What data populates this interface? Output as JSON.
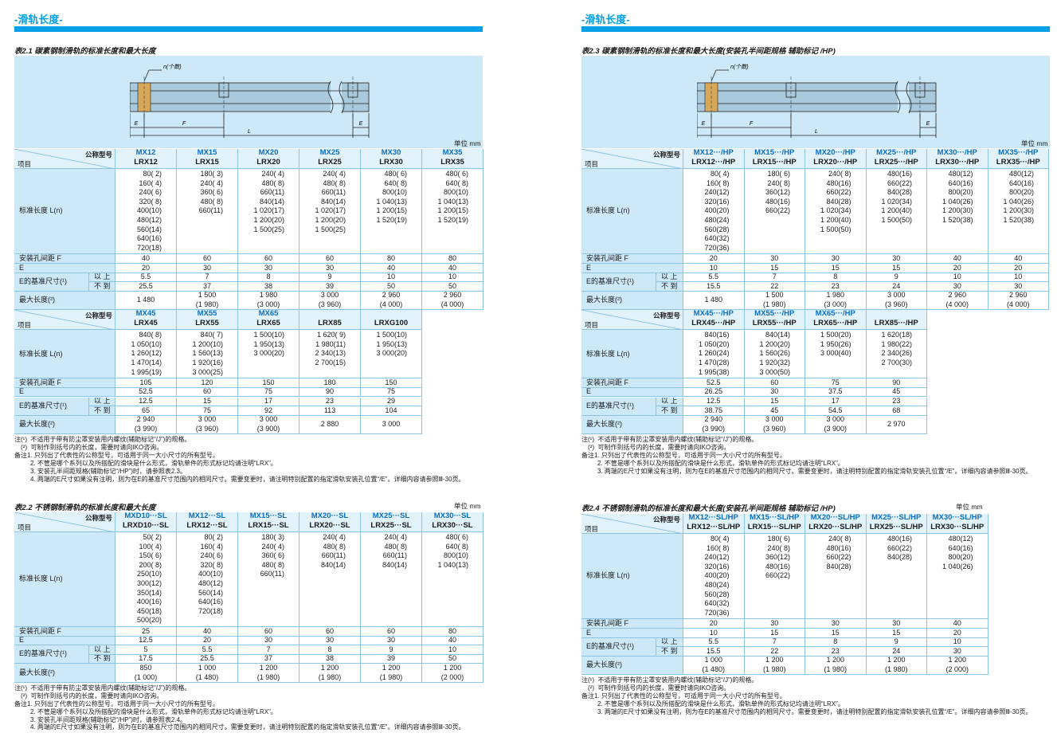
{
  "header": "-滑轨长度-",
  "unit": "单位 mm",
  "diagram": {
    "n": "n(个数)",
    "E": "E",
    "F": "F",
    "L": "L"
  },
  "corner": {
    "model": "公称型号",
    "item": "项目"
  },
  "rows": {
    "length": "标准长度 L(n)",
    "F": "安装孔间距 F",
    "E": "E",
    "e_ref": "E的基准尺寸(¹)",
    "e_min": "以 上",
    "e_max": "不 到",
    "max": "最大长度(²)"
  },
  "tables": [
    {
      "title": "表2.1  碳素钢制滑轨的标准长度和最大长度",
      "parts": [
        {
          "columns": [
            [
              "MX12",
              "LRX12"
            ],
            [
              "MX15",
              "LRX15"
            ],
            [
              "MX20",
              "LRX20"
            ],
            [
              "MX25",
              "LRX25"
            ],
            [
              "MX30",
              "LRX30"
            ],
            [
              "MX35",
              "LRX35"
            ]
          ],
          "length": [
            [
              "80( 2)",
              "160( 4)",
              "240( 6)",
              "320( 8)",
              "400(10)",
              "480(12)",
              "560(14)",
              "640(16)",
              "720(18)"
            ],
            [
              "180( 3)",
              "240( 4)",
              "360( 6)",
              "480( 8)",
              "660(11)"
            ],
            [
              "240( 4)",
              "480( 8)",
              "660(11)",
              "840(14)",
              "1 020(17)",
              "1 200(20)",
              "1 500(25)"
            ],
            [
              "240( 4)",
              "480( 8)",
              "660(11)",
              "840(14)",
              "1 020(17)",
              "1 200(20)",
              "1 500(25)"
            ],
            [
              "480( 6)",
              "640( 8)",
              "800(10)",
              "1 040(13)",
              "1 200(15)",
              "1 520(19)"
            ],
            [
              "480( 6)",
              "640( 8)",
              "800(10)",
              "1 040(13)",
              "1 200(15)",
              "1 520(19)"
            ]
          ],
          "F": [
            40,
            60,
            60,
            60,
            80,
            80
          ],
          "E": [
            20,
            30,
            30,
            30,
            40,
            40
          ],
          "e_min": [
            5.5,
            7,
            8,
            9,
            10,
            10
          ],
          "e_max": [
            25.5,
            37,
            38,
            39,
            50,
            50
          ],
          "max": [
            [
              "1 480"
            ],
            [
              "1 500",
              "(1 980)"
            ],
            [
              "1 980",
              "(3 000)"
            ],
            [
              "3 000",
              "(3 960)"
            ],
            [
              "2 960",
              "(4 000)"
            ],
            [
              "2 960",
              "(4 000)"
            ]
          ]
        },
        {
          "columns": [
            [
              "MX45",
              "LRX45"
            ],
            [
              "MX55",
              "LRX55"
            ],
            [
              "MX65",
              "LRX65"
            ],
            [
              "LRX85"
            ],
            [
              "LRXG100"
            ]
          ],
          "length": [
            [
              "840( 8)",
              "1 050(10)",
              "1 260(12)",
              "1 470(14)",
              "1 995(19)"
            ],
            [
              "840( 7)",
              "1 200(10)",
              "1 560(13)",
              "1 920(16)",
              "3 000(25)"
            ],
            [
              "1 500(10)",
              "1 950(13)",
              "3 000(20)"
            ],
            [
              "1 620( 9)",
              "1 980(11)",
              "2 340(13)",
              "2 700(15)"
            ],
            [
              "1 500(10)",
              "1 950(13)",
              "3 000(20)"
            ]
          ],
          "F": [
            105,
            120,
            150,
            180,
            150
          ],
          "E": [
            52.5,
            60,
            75,
            90,
            75
          ],
          "e_min": [
            12.5,
            15,
            17,
            23,
            29
          ],
          "e_max": [
            65,
            75,
            92,
            113,
            104
          ],
          "max": [
            [
              "2 940",
              "(3 990)"
            ],
            [
              "3 000",
              "(3 960)"
            ],
            [
              "3 000",
              "(3 900)"
            ],
            [
              "2 880"
            ],
            [
              "3 000"
            ]
          ]
        }
      ],
      "notes": [
        "注(¹)  不适用于带有防尘罩安装用内螺纹(辅助标记“/J”)的规格。",
        "(²)  可制作到括号内的长度，需要时请向IKO咨询。",
        "备注1. 只列出了代表性的公称型号，可适用于同一大小尺寸的所有型号。",
        "2. 不管是哪个系列以及所搭配的滑块是什么形式，滑轨单件的形式标记均请注明“LRX”。",
        "3. 安装孔半间距规格(辅助标记“/HP”)时，请参照表2.3。",
        "4. 两端的E尺寸如果没有注明，则为在E的基准尺寸范围内的相同尺寸。需要变更时，请注明特别配置的指定滑轨安装孔位置“/E”。详细内容请参照Ⅲ-30页。"
      ]
    },
    {
      "title": "表2.2  不锈钢制滑轨的标准长度和最大长度",
      "parts": [
        {
          "columns": [
            [
              "MXD10···SL",
              "LRXD10···SL"
            ],
            [
              "MX12···SL",
              "LRX12···SL"
            ],
            [
              "MX15···SL",
              "LRX15···SL"
            ],
            [
              "MX20···SL",
              "LRX20···SL"
            ],
            [
              "MX25···SL",
              "LRX25···SL"
            ],
            [
              "MX30···SL",
              "LRX30···SL"
            ]
          ],
          "length": [
            [
              "50( 2)",
              "100( 4)",
              "150( 6)",
              "200( 8)",
              "250(10)",
              "300(12)",
              "350(14)",
              "400(16)",
              "450(18)",
              "500(20)"
            ],
            [
              "80( 2)",
              "160( 4)",
              "240( 6)",
              "320( 8)",
              "400(10)",
              "480(12)",
              "560(14)",
              "640(16)",
              "720(18)"
            ],
            [
              "180( 3)",
              "240( 4)",
              "360( 6)",
              "480( 8)",
              "660(11)"
            ],
            [
              "240( 4)",
              "480( 8)",
              "660(11)",
              "840(14)"
            ],
            [
              "240( 4)",
              "480( 8)",
              "660(11)",
              "840(14)"
            ],
            [
              "480( 6)",
              "640( 8)",
              "800(10)",
              "1 040(13)"
            ]
          ],
          "F": [
            25,
            40,
            60,
            60,
            60,
            80
          ],
          "E": [
            12.5,
            20,
            30,
            30,
            30,
            40
          ],
          "e_min": [
            5,
            5.5,
            7,
            8,
            9,
            10
          ],
          "e_max": [
            17.5,
            25.5,
            37,
            38,
            39,
            50
          ],
          "max": [
            [
              "850",
              "(1 000)"
            ],
            [
              "1 000",
              "(1 480)"
            ],
            [
              "1 200",
              "(1 980)"
            ],
            [
              "1 200",
              "(1 980)"
            ],
            [
              "1 200",
              "(1 980)"
            ],
            [
              "1 200",
              "(2 000)"
            ]
          ]
        }
      ],
      "notes": [
        "注(¹)  不适用于带有防尘罩安装用内螺纹(辅助标记“/J”)的规格。",
        "(²)  可制作到括号内的长度，需要时请向IKO咨询。",
        "备注1. 只列出了代表性的公称型号，可适用于同一大小尺寸的所有型号。",
        "2. 不管是哪个系列以及所搭配的滑块是什么形式，滑轨单件的形式标记均请注明“LRX”。",
        "3. 安装孔半间距规格(辅助标记“/HP”)时，请参照表2.4。",
        "4. 两端的E尺寸如果没有注明，则为在E的基准尺寸范围内的相同尺寸。需要变更时，请注明特别配置的指定滑轨安装孔位置“/E”。详细内容请参照Ⅲ-30页。"
      ]
    },
    {
      "title": "表2.3  碳素钢制滑轨的标准长度和最大长度(安装孔半间距规格 辅助标记 /HP)",
      "parts": [
        {
          "columns": [
            [
              "MX12···/HP",
              "LRX12···/HP"
            ],
            [
              "MX15···/HP",
              "LRX15···/HP"
            ],
            [
              "MX20···/HP",
              "LRX20···/HP"
            ],
            [
              "MX25···/HP",
              "LRX25···/HP"
            ],
            [
              "MX30···/HP",
              "LRX30···/HP"
            ],
            [
              "MX35···/HP",
              "LRX35···/HP"
            ]
          ],
          "length": [
            [
              "80( 4)",
              "160( 8)",
              "240(12)",
              "320(16)",
              "400(20)",
              "480(24)",
              "560(28)",
              "640(32)",
              "720(36)"
            ],
            [
              "180( 6)",
              "240( 8)",
              "360(12)",
              "480(16)",
              "660(22)"
            ],
            [
              "240( 8)",
              "480(16)",
              "660(22)",
              "840(28)",
              "1 020(34)",
              "1 200(40)",
              "1 500(50)"
            ],
            [
              "480(16)",
              "660(22)",
              "840(28)",
              "1 020(34)",
              "1 200(40)",
              "1 500(50)"
            ],
            [
              "480(12)",
              "640(16)",
              "800(20)",
              "1 040(26)",
              "1 200(30)",
              "1 520(38)"
            ],
            [
              "480(12)",
              "640(16)",
              "800(20)",
              "1 040(26)",
              "1 200(30)",
              "1 520(38)"
            ]
          ],
          "F": [
            20,
            30,
            30,
            30,
            40,
            40
          ],
          "E": [
            10,
            15,
            15,
            15,
            20,
            20
          ],
          "e_min": [
            5.5,
            7,
            8,
            9,
            10,
            10
          ],
          "e_max": [
            15.5,
            22,
            23,
            24,
            30,
            30
          ],
          "max": [
            [
              "1 480"
            ],
            [
              "1 500",
              "(1 980)"
            ],
            [
              "1 980",
              "(3 000)"
            ],
            [
              "3 000",
              "(3 960)"
            ],
            [
              "2 960",
              "(4 000)"
            ],
            [
              "2 960",
              "(4 000)"
            ]
          ]
        },
        {
          "columns": [
            [
              "MX45···/HP",
              "LRX45···/HP"
            ],
            [
              "MX55···/HP",
              "LRX55···/HP"
            ],
            [
              "MX65···/HP",
              "LRX65···/HP"
            ],
            [
              "LRX85···/HP"
            ]
          ],
          "length": [
            [
              "840(16)",
              "1 050(20)",
              "1 260(24)",
              "1 470(28)",
              "1 995(38)"
            ],
            [
              "840(14)",
              "1 200(20)",
              "1 560(26)",
              "1 920(32)",
              "3 000(50)"
            ],
            [
              "1 500(20)",
              "1 950(26)",
              "3 000(40)"
            ],
            [
              "1 620(18)",
              "1 980(22)",
              "2 340(26)",
              "2 700(30)"
            ]
          ],
          "F": [
            52.5,
            60,
            75,
            90
          ],
          "E": [
            26.25,
            30,
            37.5,
            45
          ],
          "e_min": [
            12.5,
            15,
            17,
            23
          ],
          "e_max": [
            38.75,
            45,
            54.5,
            68
          ],
          "max": [
            [
              "2 940",
              "(3 990)"
            ],
            [
              "3 000",
              "(3 960)"
            ],
            [
              "3 000",
              "(3 900)"
            ],
            [
              "2 970"
            ]
          ]
        }
      ],
      "notes": [
        "注(¹)  不适用于带有防尘罩安装用内螺纹(辅助标记“/J”)的规格。",
        "(²)  可制作到括号内的长度，需要时请向IKO咨询。",
        "备注1. 只列出了代表性的公称型号，可适用于同一大小尺寸的所有型号。",
        "2. 不管是哪个系列以及所搭配的滑块是什么形式，滑轨单件的形式标记均请注明“LRX”。",
        "3. 两端的E尺寸如果没有注明，则为在E的基准尺寸范围内的相同尺寸。需要变更时，请注明特别配置的指定滑轨安装孔位置“/E”。详细内容请参照Ⅲ-30页。"
      ]
    },
    {
      "title": "表2.4  不锈钢制滑轨的标准长度和最大长度(安装孔半间距规格 辅助标记 /HP)",
      "parts": [
        {
          "columns": [
            [
              "MX12···SL/HP",
              "LRX12···SL/HP"
            ],
            [
              "MX15···SL/HP",
              "LRX15···SL/HP"
            ],
            [
              "MX20···SL/HP",
              "LRX20···SL/HP"
            ],
            [
              "MX25···SL/HP",
              "LRX25···SL/HP"
            ],
            [
              "MX30···SL/HP",
              "LRX30···SL/HP"
            ]
          ],
          "length": [
            [
              "80( 4)",
              "160( 8)",
              "240(12)",
              "320(16)",
              "400(20)",
              "480(24)",
              "560(28)",
              "640(32)",
              "720(36)"
            ],
            [
              "180( 6)",
              "240( 8)",
              "360(12)",
              "480(16)",
              "660(22)"
            ],
            [
              "240( 8)",
              "480(16)",
              "660(22)",
              "840(28)"
            ],
            [
              "480(16)",
              "660(22)",
              "840(28)"
            ],
            [
              "480(12)",
              "640(16)",
              "800(20)",
              "1 040(26)"
            ]
          ],
          "F": [
            20,
            30,
            30,
            30,
            40
          ],
          "E": [
            10,
            15,
            15,
            15,
            20
          ],
          "e_min": [
            5.5,
            7,
            8,
            9,
            10
          ],
          "e_max": [
            15.5,
            22,
            23,
            24,
            30
          ],
          "max": [
            [
              "1 000",
              "(1 480)"
            ],
            [
              "1 200",
              "(1 980)"
            ],
            [
              "1 200",
              "(1 980)"
            ],
            [
              "1 200",
              "(1 980)"
            ],
            [
              "1 200",
              "(2 000)"
            ]
          ]
        }
      ],
      "notes": [
        "注(¹)  不适用于带有防尘罩安装用内螺纹(辅助标记“/J”)的规格。",
        "(²)  可制作到括号内的长度，需要时请向IKO咨询。",
        "备注1. 只列出了代表性的公称型号，可适用于同一大小尺寸的所有型号。",
        "2. 不管是哪个系列以及所搭配的滑块是什么形式，滑轨单件的形式标记均请注明“LRX”。",
        "3. 两端的E尺寸如果没有注明，则为在E的基准尺寸范围内的相同尺寸。需要变更时，请注明特别配置的指定滑轨安装孔位置“/E”。详细内容请参照Ⅲ-30页。"
      ]
    }
  ]
}
